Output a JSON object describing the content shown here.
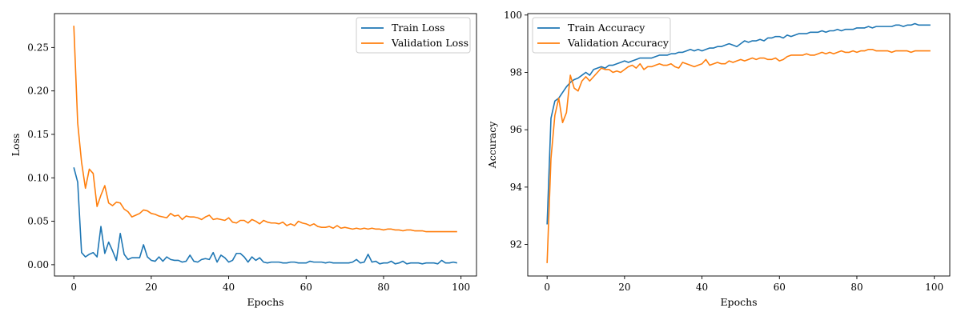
{
  "chart_data": [
    {
      "type": "line",
      "xlabel": "Epochs",
      "ylabel": "Loss",
      "xlim": [
        -5,
        104
      ],
      "ylim": [
        -0.013,
        0.289
      ],
      "xticks": [
        0,
        20,
        40,
        60,
        80,
        100
      ],
      "xtick_labels": [
        "0",
        "20",
        "40",
        "60",
        "80",
        "100"
      ],
      "yticks": [
        0.0,
        0.05,
        0.1,
        0.15,
        0.2,
        0.25
      ],
      "ytick_labels": [
        "0.00",
        "0.05",
        "0.10",
        "0.15",
        "0.20",
        "0.25"
      ],
      "legend_position": "top-right",
      "grid": false,
      "x": [
        0,
        1,
        2,
        3,
        4,
        5,
        6,
        7,
        8,
        9,
        10,
        11,
        12,
        13,
        14,
        15,
        16,
        17,
        18,
        19,
        20,
        21,
        22,
        23,
        24,
        25,
        26,
        27,
        28,
        29,
        30,
        31,
        32,
        33,
        34,
        35,
        36,
        37,
        38,
        39,
        40,
        41,
        42,
        43,
        44,
        45,
        46,
        47,
        48,
        49,
        50,
        51,
        52,
        53,
        54,
        55,
        56,
        57,
        58,
        59,
        60,
        61,
        62,
        63,
        64,
        65,
        66,
        67,
        68,
        69,
        70,
        71,
        72,
        73,
        74,
        75,
        76,
        77,
        78,
        79,
        80,
        81,
        82,
        83,
        84,
        85,
        86,
        87,
        88,
        89,
        90,
        91,
        92,
        93,
        94,
        95,
        96,
        97,
        98,
        99
      ],
      "series": [
        {
          "name": "Train Loss",
          "color": "#1f77b4",
          "values": [
            0.112,
            0.095,
            0.014,
            0.009,
            0.012,
            0.014,
            0.009,
            0.044,
            0.013,
            0.026,
            0.016,
            0.005,
            0.036,
            0.012,
            0.006,
            0.008,
            0.008,
            0.008,
            0.023,
            0.009,
            0.005,
            0.004,
            0.009,
            0.004,
            0.009,
            0.006,
            0.005,
            0.005,
            0.003,
            0.004,
            0.011,
            0.004,
            0.003,
            0.006,
            0.007,
            0.006,
            0.014,
            0.003,
            0.011,
            0.008,
            0.003,
            0.005,
            0.013,
            0.013,
            0.009,
            0.003,
            0.009,
            0.005,
            0.008,
            0.003,
            0.002,
            0.003,
            0.003,
            0.003,
            0.002,
            0.002,
            0.003,
            0.003,
            0.002,
            0.002,
            0.002,
            0.004,
            0.003,
            0.003,
            0.003,
            0.002,
            0.003,
            0.002,
            0.002,
            0.002,
            0.002,
            0.002,
            0.003,
            0.006,
            0.002,
            0.003,
            0.012,
            0.003,
            0.004,
            0.001,
            0.002,
            0.002,
            0.004,
            0.001,
            0.002,
            0.004,
            0.001,
            0.002,
            0.002,
            0.002,
            0.001,
            0.002,
            0.002,
            0.002,
            0.001,
            0.005,
            0.002,
            0.002,
            0.003,
            0.002
          ]
        },
        {
          "name": "Validation Loss",
          "color": "#ff7f0e",
          "values": [
            0.275,
            0.163,
            0.118,
            0.088,
            0.11,
            0.105,
            0.067,
            0.08,
            0.091,
            0.071,
            0.068,
            0.072,
            0.071,
            0.064,
            0.061,
            0.055,
            0.057,
            0.059,
            0.063,
            0.062,
            0.059,
            0.058,
            0.056,
            0.055,
            0.054,
            0.059,
            0.056,
            0.057,
            0.052,
            0.056,
            0.055,
            0.055,
            0.054,
            0.052,
            0.055,
            0.057,
            0.052,
            0.053,
            0.052,
            0.051,
            0.054,
            0.049,
            0.048,
            0.051,
            0.051,
            0.048,
            0.052,
            0.05,
            0.047,
            0.051,
            0.049,
            0.048,
            0.048,
            0.047,
            0.049,
            0.045,
            0.047,
            0.045,
            0.05,
            0.048,
            0.047,
            0.045,
            0.047,
            0.044,
            0.043,
            0.043,
            0.044,
            0.042,
            0.045,
            0.042,
            0.043,
            0.042,
            0.041,
            0.042,
            0.041,
            0.042,
            0.041,
            0.042,
            0.041,
            0.041,
            0.04,
            0.041,
            0.041,
            0.04,
            0.04,
            0.039,
            0.04,
            0.04,
            0.039,
            0.039,
            0.039,
            0.038,
            0.038,
            0.038,
            0.038,
            0.038,
            0.038,
            0.038,
            0.038,
            0.038
          ]
        }
      ]
    },
    {
      "type": "line",
      "xlabel": "Epochs",
      "ylabel": "Accuracy",
      "xlim": [
        -5,
        104
      ],
      "ylim": [
        90.9,
        100.05
      ],
      "xticks": [
        0,
        20,
        40,
        60,
        80,
        100
      ],
      "xtick_labels": [
        "0",
        "20",
        "40",
        "60",
        "80",
        "100"
      ],
      "yticks": [
        92,
        94,
        96,
        98,
        100
      ],
      "ytick_labels": [
        "92",
        "94",
        "96",
        "98",
        "100"
      ],
      "legend_position": "top-left",
      "grid": false,
      "x": [
        0,
        1,
        2,
        3,
        4,
        5,
        6,
        7,
        8,
        9,
        10,
        11,
        12,
        13,
        14,
        15,
        16,
        17,
        18,
        19,
        20,
        21,
        22,
        23,
        24,
        25,
        26,
        27,
        28,
        29,
        30,
        31,
        32,
        33,
        34,
        35,
        36,
        37,
        38,
        39,
        40,
        41,
        42,
        43,
        44,
        45,
        46,
        47,
        48,
        49,
        50,
        51,
        52,
        53,
        54,
        55,
        56,
        57,
        58,
        59,
        60,
        61,
        62,
        63,
        64,
        65,
        66,
        67,
        68,
        69,
        70,
        71,
        72,
        73,
        74,
        75,
        76,
        77,
        78,
        79,
        80,
        81,
        82,
        83,
        84,
        85,
        86,
        87,
        88,
        89,
        90,
        91,
        92,
        93,
        94,
        95,
        96,
        97,
        98,
        99
      ],
      "series": [
        {
          "name": "Train Accuracy",
          "color": "#1f77b4",
          "values": [
            92.7,
            96.4,
            97.0,
            97.1,
            97.3,
            97.5,
            97.65,
            97.75,
            97.8,
            97.9,
            98.0,
            97.9,
            98.1,
            98.15,
            98.2,
            98.15,
            98.25,
            98.25,
            98.3,
            98.35,
            98.4,
            98.35,
            98.4,
            98.45,
            98.5,
            98.5,
            98.5,
            98.5,
            98.55,
            98.6,
            98.6,
            98.6,
            98.65,
            98.65,
            98.7,
            98.7,
            98.75,
            98.8,
            98.75,
            98.8,
            98.75,
            98.8,
            98.85,
            98.85,
            98.9,
            98.9,
            98.95,
            99.0,
            98.95,
            98.9,
            99.0,
            99.1,
            99.05,
            99.1,
            99.1,
            99.15,
            99.1,
            99.2,
            99.2,
            99.25,
            99.25,
            99.2,
            99.3,
            99.25,
            99.3,
            99.35,
            99.35,
            99.35,
            99.4,
            99.4,
            99.4,
            99.45,
            99.4,
            99.45,
            99.45,
            99.5,
            99.45,
            99.5,
            99.5,
            99.5,
            99.55,
            99.55,
            99.55,
            99.6,
            99.55,
            99.6,
            99.6,
            99.6,
            99.6,
            99.6,
            99.65,
            99.65,
            99.6,
            99.65,
            99.65,
            99.7,
            99.65,
            99.65,
            99.65,
            99.65
          ]
        },
        {
          "name": "Validation Accuracy",
          "color": "#ff7f0e",
          "values": [
            91.35,
            95.0,
            96.5,
            97.1,
            96.25,
            96.6,
            97.9,
            97.45,
            97.35,
            97.7,
            97.85,
            97.7,
            97.85,
            98.0,
            98.15,
            98.1,
            98.1,
            98.0,
            98.05,
            98.0,
            98.1,
            98.2,
            98.25,
            98.15,
            98.3,
            98.1,
            98.2,
            98.2,
            98.25,
            98.3,
            98.25,
            98.25,
            98.3,
            98.2,
            98.15,
            98.35,
            98.3,
            98.25,
            98.2,
            98.25,
            98.3,
            98.45,
            98.25,
            98.3,
            98.35,
            98.3,
            98.3,
            98.4,
            98.35,
            98.4,
            98.45,
            98.4,
            98.45,
            98.5,
            98.45,
            98.5,
            98.5,
            98.45,
            98.45,
            98.5,
            98.4,
            98.45,
            98.55,
            98.6,
            98.6,
            98.6,
            98.6,
            98.65,
            98.6,
            98.6,
            98.65,
            98.7,
            98.65,
            98.7,
            98.65,
            98.7,
            98.75,
            98.7,
            98.7,
            98.75,
            98.7,
            98.75,
            98.75,
            98.8,
            98.8,
            98.75,
            98.75,
            98.75,
            98.75,
            98.7,
            98.75,
            98.75,
            98.75,
            98.75,
            98.7,
            98.75,
            98.75,
            98.75,
            98.75,
            98.75
          ]
        }
      ]
    }
  ]
}
